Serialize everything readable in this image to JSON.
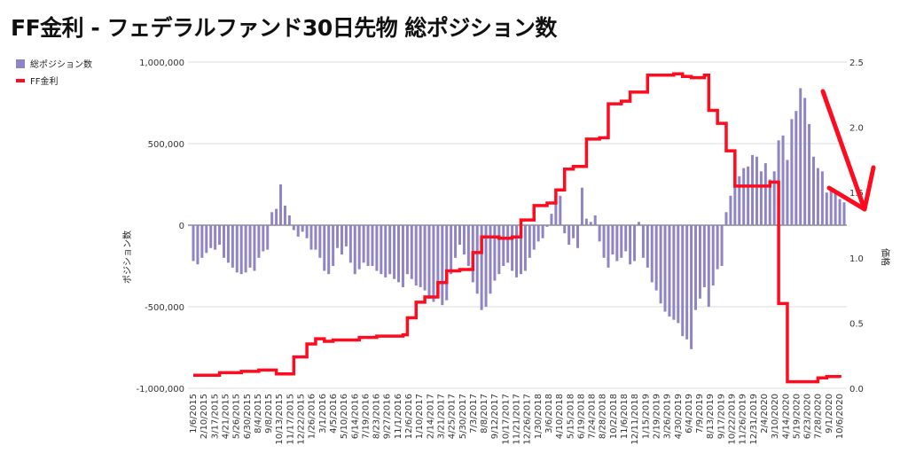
{
  "title": "FF金利 - フェデラルファンド30日先物 総ポジション数",
  "chart_data": {
    "type": "bar+line",
    "title": "FF金利 - フェデラルファンド30日先物 総ポジション数",
    "legend": {
      "placement": "top-left",
      "entries": [
        "総ポジション数",
        "FF金利"
      ]
    },
    "ylabel_left": "ポジション数",
    "ylabel_right": "価格",
    "ylim_left": [
      -1000000,
      1000000
    ],
    "ylim_right": [
      0,
      2.5
    ],
    "left_ticks": [
      "1,000,000",
      "500,000",
      "0",
      "-500,000",
      "-1,000,000"
    ],
    "left_tick_values": [
      1000000,
      500000,
      0,
      -500000,
      -1000000
    ],
    "right_ticks": [
      "2.5",
      "2.0",
      "1.5",
      "1.0",
      "0.5",
      "0.0"
    ],
    "right_tick_values": [
      2.5,
      2.0,
      1.5,
      1.0,
      0.5,
      0.0
    ],
    "x_labels": [
      "1/6/2015",
      "2/10/2015",
      "3/17/2015",
      "4/21/2015",
      "5/26/2015",
      "6/30/2015",
      "8/4/2015",
      "9/8/2015",
      "10/13/2015",
      "11/17/2015",
      "12/22/2015",
      "1/26/2016",
      "3/1/2016",
      "4/5/2016",
      "5/10/2016",
      "6/14/2016",
      "7/19/2016",
      "8/23/2016",
      "9/27/2016",
      "11/1/2016",
      "12/6/2016",
      "1/10/2017",
      "2/14/2017",
      "3/21/2017",
      "4/25/2017",
      "5/30/2017",
      "7/3/2017",
      "8/8/2017",
      "9/12/2017",
      "10/17/2017",
      "11/21/2017",
      "12/26/2017",
      "1/30/2018",
      "3/6/2018",
      "4/10/2018",
      "5/15/2018",
      "6/19/2018",
      "7/24/2018",
      "8/28/2018",
      "10/2/2018",
      "11/6/2018",
      "12/11/2018",
      "1/15/2019",
      "2/19/2019",
      "3/26/2019",
      "4/30/2019",
      "6/4/2019",
      "7/9/2019",
      "8/13/2019",
      "9/17/2019",
      "10/22/2019",
      "11/26/2019",
      "12/31/2019",
      "2/4/2020",
      "3/10/2020",
      "4/14/2020",
      "5/19/2020",
      "6/23/2020",
      "7/28/2020",
      "9/1/2020",
      "10/6/2020"
    ],
    "x_interval_note": "biweekly samples; one x label every 2.5 samples",
    "series": [
      {
        "name": "総ポジション数",
        "type": "bar",
        "color": "#9085c4",
        "values": [
          -220000,
          -240000,
          -200000,
          -170000,
          -140000,
          -150000,
          -120000,
          -200000,
          -230000,
          -260000,
          -290000,
          -300000,
          -290000,
          -260000,
          -280000,
          -200000,
          -160000,
          -150000,
          80000,
          100000,
          250000,
          120000,
          60000,
          -30000,
          -70000,
          -40000,
          -80000,
          -150000,
          -150000,
          -200000,
          -280000,
          -300000,
          -250000,
          -140000,
          -180000,
          -130000,
          -230000,
          -300000,
          -270000,
          -230000,
          -250000,
          -250000,
          -280000,
          -300000,
          -320000,
          -300000,
          -330000,
          -350000,
          -380000,
          -300000,
          -330000,
          -370000,
          -380000,
          -400000,
          -450000,
          -470000,
          -430000,
          -490000,
          -460000,
          -300000,
          -200000,
          -120000,
          -180000,
          -250000,
          -350000,
          -420000,
          -520000,
          -500000,
          -420000,
          -340000,
          -300000,
          -250000,
          -230000,
          -280000,
          -320000,
          -300000,
          -280000,
          -200000,
          -150000,
          -100000,
          -80000,
          -10000,
          70000,
          130000,
          180000,
          -50000,
          -120000,
          -80000,
          -140000,
          230000,
          40000,
          20000,
          60000,
          -100000,
          -200000,
          -260000,
          -180000,
          -220000,
          -200000,
          -160000,
          -240000,
          -220000,
          20000,
          -200000,
          -260000,
          -350000,
          -400000,
          -480000,
          -530000,
          -560000,
          -580000,
          -600000,
          -680000,
          -700000,
          -760000,
          -520000,
          -450000,
          -380000,
          -500000,
          -370000,
          -270000,
          -250000,
          80000,
          180000,
          280000,
          300000,
          350000,
          360000,
          430000,
          420000,
          330000,
          380000,
          280000,
          330000,
          520000,
          550000,
          400000,
          650000,
          700000,
          840000,
          780000,
          620000,
          420000,
          350000,
          330000,
          200000,
          230000,
          210000,
          160000,
          140000
        ]
      },
      {
        "name": "FF金利",
        "type": "line",
        "color": "#ff0a1e",
        "values": [
          0.1,
          0.1,
          0.1,
          0.1,
          0.1,
          0.1,
          0.12,
          0.12,
          0.12,
          0.12,
          0.12,
          0.13,
          0.13,
          0.13,
          0.13,
          0.14,
          0.14,
          0.14,
          0.14,
          0.11,
          0.11,
          0.11,
          0.11,
          0.24,
          0.24,
          0.24,
          0.34,
          0.34,
          0.38,
          0.38,
          0.36,
          0.36,
          0.37,
          0.37,
          0.37,
          0.37,
          0.37,
          0.37,
          0.39,
          0.39,
          0.39,
          0.39,
          0.4,
          0.4,
          0.4,
          0.4,
          0.4,
          0.4,
          0.41,
          0.54,
          0.54,
          0.66,
          0.66,
          0.7,
          0.7,
          0.7,
          0.81,
          0.81,
          0.9,
          0.9,
          0.9,
          0.91,
          0.91,
          0.91,
          1.04,
          1.04,
          1.16,
          1.16,
          1.16,
          1.16,
          1.15,
          1.15,
          1.15,
          1.16,
          1.16,
          1.29,
          1.29,
          1.29,
          1.4,
          1.4,
          1.4,
          1.42,
          1.42,
          1.52,
          1.52,
          1.68,
          1.68,
          1.7,
          1.7,
          1.7,
          1.91,
          1.91,
          1.91,
          1.92,
          1.92,
          2.18,
          2.18,
          2.18,
          2.2,
          2.2,
          2.27,
          2.27,
          2.27,
          2.27,
          2.4,
          2.4,
          2.4,
          2.4,
          2.4,
          2.4,
          2.41,
          2.41,
          2.39,
          2.39,
          2.38,
          2.38,
          2.38,
          2.4,
          2.13,
          2.13,
          2.03,
          2.03,
          1.82,
          1.82,
          1.55,
          1.55,
          1.55,
          1.55,
          1.55,
          1.55,
          1.55,
          1.55,
          1.58,
          1.58,
          0.65,
          0.65,
          0.05,
          0.05,
          0.05,
          0.05,
          0.05,
          0.05,
          0.05,
          0.08,
          0.08,
          0.09,
          0.09,
          0.09,
          0.08
        ]
      }
    ],
    "annotation": "red downward arrow at right end"
  }
}
